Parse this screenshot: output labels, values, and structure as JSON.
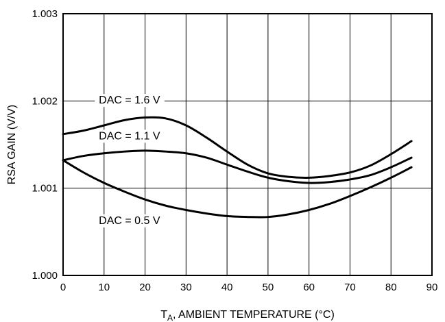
{
  "chart_data": {
    "type": "line",
    "title": "",
    "xlabel": {
      "main": "T",
      "sub": "A",
      "rest": ", AMBIENT TEMPERATURE (°C)"
    },
    "ylabel": "RSA GAIN (V/V)",
    "xlim": [
      0,
      90
    ],
    "ylim": [
      1.0,
      1.003
    ],
    "x_ticks": [
      "0",
      "10",
      "20",
      "30",
      "40",
      "50",
      "60",
      "70",
      "80",
      "90"
    ],
    "y_ticks": [
      "1.000",
      "1.001",
      "1.002",
      "1.003"
    ],
    "grid": true,
    "series": [
      {
        "name": "DAC = 1.6 V",
        "x": [
          0,
          5,
          10,
          15,
          20,
          25,
          30,
          35,
          40,
          45,
          50,
          55,
          60,
          65,
          70,
          75,
          80,
          85
        ],
        "y": [
          1.00162,
          1.00166,
          1.00172,
          1.00178,
          1.00181,
          1.0018,
          1.00172,
          1.00158,
          1.00142,
          1.00127,
          1.00117,
          1.00113,
          1.00112,
          1.00114,
          1.00118,
          1.00126,
          1.00139,
          1.00154
        ]
      },
      {
        "name": "DAC = 1.1 V",
        "x": [
          0,
          5,
          10,
          15,
          20,
          25,
          30,
          35,
          40,
          45,
          50,
          55,
          60,
          65,
          70,
          75,
          80,
          85
        ],
        "y": [
          1.00132,
          1.00137,
          1.0014,
          1.00142,
          1.00143,
          1.00142,
          1.0014,
          1.00135,
          1.00127,
          1.00119,
          1.00112,
          1.00108,
          1.00106,
          1.00107,
          1.0011,
          1.00115,
          1.00124,
          1.00135
        ]
      },
      {
        "name": "DAC = 0.5 V",
        "x": [
          0,
          5,
          10,
          15,
          20,
          25,
          30,
          35,
          40,
          45,
          50,
          55,
          60,
          65,
          70,
          75,
          80,
          85
        ],
        "y": [
          1.00132,
          1.00118,
          1.00106,
          1.00096,
          1.00087,
          1.0008,
          1.00075,
          1.00071,
          1.00068,
          1.00067,
          1.00067,
          1.0007,
          1.00075,
          1.00082,
          1.00091,
          1.00101,
          1.00112,
          1.00124
        ]
      }
    ]
  }
}
